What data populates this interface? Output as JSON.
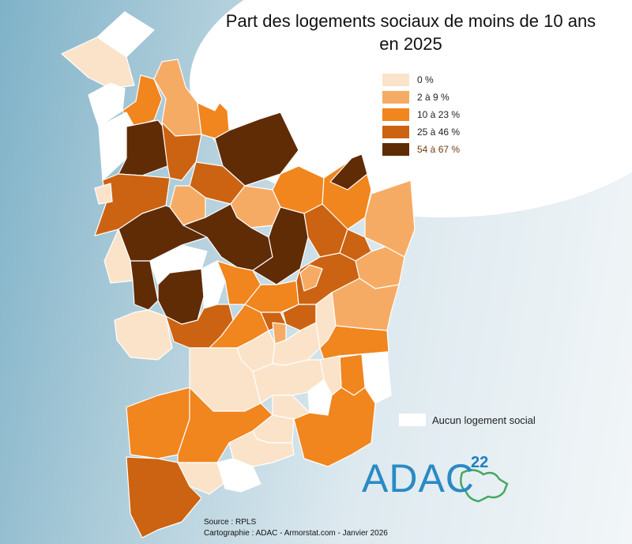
{
  "title_line1": "Part des logements sociaux de moins de 10 ans",
  "title_line2": "en 2025",
  "legend": [
    {
      "label": "0 %",
      "color": "#fbe3c9"
    },
    {
      "label": "2 à 9 %",
      "color": "#f6ab64"
    },
    {
      "label": "10 à 23 %",
      "color": "#f1851e"
    },
    {
      "label": "25 à 46 %",
      "color": "#cc6312"
    },
    {
      "label": "54 à 67 %",
      "color": "#5f2c06"
    }
  ],
  "no_data_label": "Aucun logement social",
  "no_data_color": "#ffffff",
  "source_line1": "Source : RPLS",
  "source_line2": "Cartographie : ADAC - Armorstat.com - Janvier 2026",
  "logo_text": "ADAC",
  "logo_number": "22"
}
